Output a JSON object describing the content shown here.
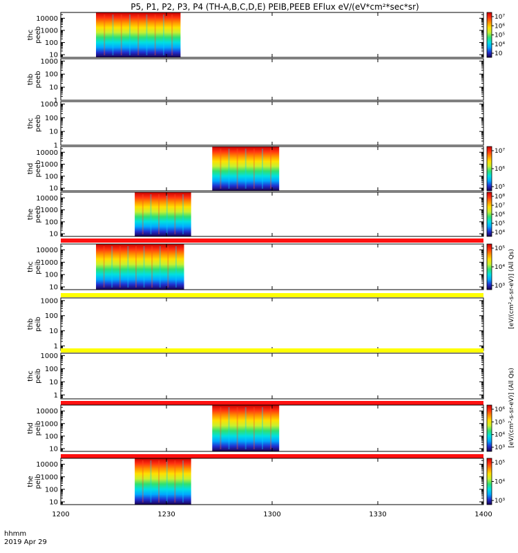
{
  "title": "P5, P1, P2, P3, P4 (TH-A,B,C,D,E) PEIB,PEEB EFlux eV/(eV*cm²*sec*sr)",
  "footer": {
    "label1": "hhmm",
    "label2": "2019 Apr 29"
  },
  "colorbar_labels": {
    "peeb": "[eV/(cm²-s-sr-eV)] (All Qs)",
    "peib": "[eV/(cm²-s-sr-eV)] (All Qs)"
  },
  "colors": {
    "spectrogram": [
      "#1a0050",
      "#2030d0",
      "#00a8ff",
      "#00e0e0",
      "#30e070",
      "#c8f030",
      "#ffe000",
      "#ff9000",
      "#ff3010",
      "#c80000"
    ],
    "band_red": "#ff1010",
    "band_yellow": "#ffff00"
  },
  "chart_data": {
    "type": "heatmap",
    "x_axis": {
      "label": "hhmm",
      "ticks": [
        "1200",
        "1230",
        "1300",
        "1330",
        "1400"
      ],
      "range": [
        "12:00",
        "14:00"
      ]
    },
    "panels": [
      {
        "probe": "thc",
        "instrument": "peeb",
        "ylabel": [
          "thc",
          "peeb"
        ],
        "yticks": [
          "10",
          "100",
          "1000",
          "10000"
        ],
        "ylim": [
          6,
          30000
        ],
        "log_y": true,
        "data_time": [
          "12:10",
          "12:34"
        ],
        "colorbar_ticks": [
          "10⁳",
          "10⁴",
          "10⁵",
          "10⁶",
          "10⁷"
        ]
      },
      {
        "probe": "thb",
        "instrument": "peeb",
        "ylabel": [
          "thb",
          "peeb"
        ],
        "yticks": [
          "1",
          "10",
          "100",
          "1000"
        ],
        "ylim": [
          1,
          1500
        ],
        "log_y": true,
        "data_time": null,
        "colorbar_ticks": []
      },
      {
        "probe": "thc",
        "instrument": "peeb",
        "ylabel": [
          "thc",
          "peeb"
        ],
        "yticks": [
          "1",
          "10",
          "100",
          "1000"
        ],
        "ylim": [
          1,
          1500
        ],
        "log_y": true,
        "data_time": null,
        "colorbar_ticks": []
      },
      {
        "probe": "thd",
        "instrument": "peeb",
        "ylabel": [
          "thd",
          "peeb"
        ],
        "yticks": [
          "10",
          "100",
          "1000",
          "10000"
        ],
        "ylim": [
          6,
          30000
        ],
        "log_y": true,
        "data_time": [
          "12:43",
          "13:02"
        ],
        "colorbar_ticks": [
          "10⁵",
          "10⁶",
          "10⁷"
        ]
      },
      {
        "probe": "the",
        "instrument": "peeb",
        "ylabel": [
          "the",
          "peeb"
        ],
        "yticks": [
          "10",
          "100",
          "1000",
          "10000"
        ],
        "ylim": [
          6,
          30000
        ],
        "log_y": true,
        "data_time": [
          "12:21",
          "12:37"
        ],
        "colorbar_ticks": [
          "10⁴",
          "10⁵",
          "10⁶",
          "10⁷",
          "10⁸"
        ]
      },
      {
        "probe": "thc",
        "instrument": "peib",
        "ylabel": [
          "thc",
          "peib"
        ],
        "yticks": [
          "10",
          "100",
          "1000",
          "10000"
        ],
        "ylim": [
          6,
          30000
        ],
        "log_y": true,
        "data_time": [
          "12:10",
          "12:35"
        ],
        "band_above": "band_red",
        "colorbar_ticks": [
          "10³",
          "10⁴",
          "10⁵"
        ]
      },
      {
        "probe": "thb",
        "instrument": "peib",
        "ylabel": [
          "thb",
          "peib"
        ],
        "yticks": [
          "1",
          "10",
          "100",
          "1000"
        ],
        "ylim": [
          0.5,
          1500
        ],
        "log_y": true,
        "data_time": null,
        "band_above": "band_yellow",
        "colorbar_ticks": []
      },
      {
        "probe": "thc",
        "instrument": "peib",
        "ylabel": [
          "thc",
          "peib"
        ],
        "yticks": [
          "1",
          "10",
          "100",
          "1000"
        ],
        "ylim": [
          0.5,
          1500
        ],
        "log_y": true,
        "data_time": null,
        "band_above": "band_yellow",
        "colorbar_ticks": []
      },
      {
        "probe": "thd",
        "instrument": "peib",
        "ylabel": [
          "thd",
          "peib"
        ],
        "yticks": [
          "10",
          "100",
          "1000",
          "10000"
        ],
        "ylim": [
          6,
          30000
        ],
        "log_y": true,
        "data_time": [
          "12:43",
          "13:02"
        ],
        "band_above": "band_red",
        "colorbar_ticks": [
          "10³",
          "10⁴",
          "10⁵",
          "10⁶"
        ]
      },
      {
        "probe": "the",
        "instrument": "peib",
        "ylabel": [
          "the",
          "peib"
        ],
        "yticks": [
          "10",
          "100",
          "1000",
          "10000"
        ],
        "ylim": [
          6,
          30000
        ],
        "log_y": true,
        "data_time": [
          "12:21",
          "12:37"
        ],
        "band_above": "band_red",
        "colorbar_ticks": [
          "10³",
          "10⁴",
          "10⁵"
        ]
      }
    ]
  }
}
